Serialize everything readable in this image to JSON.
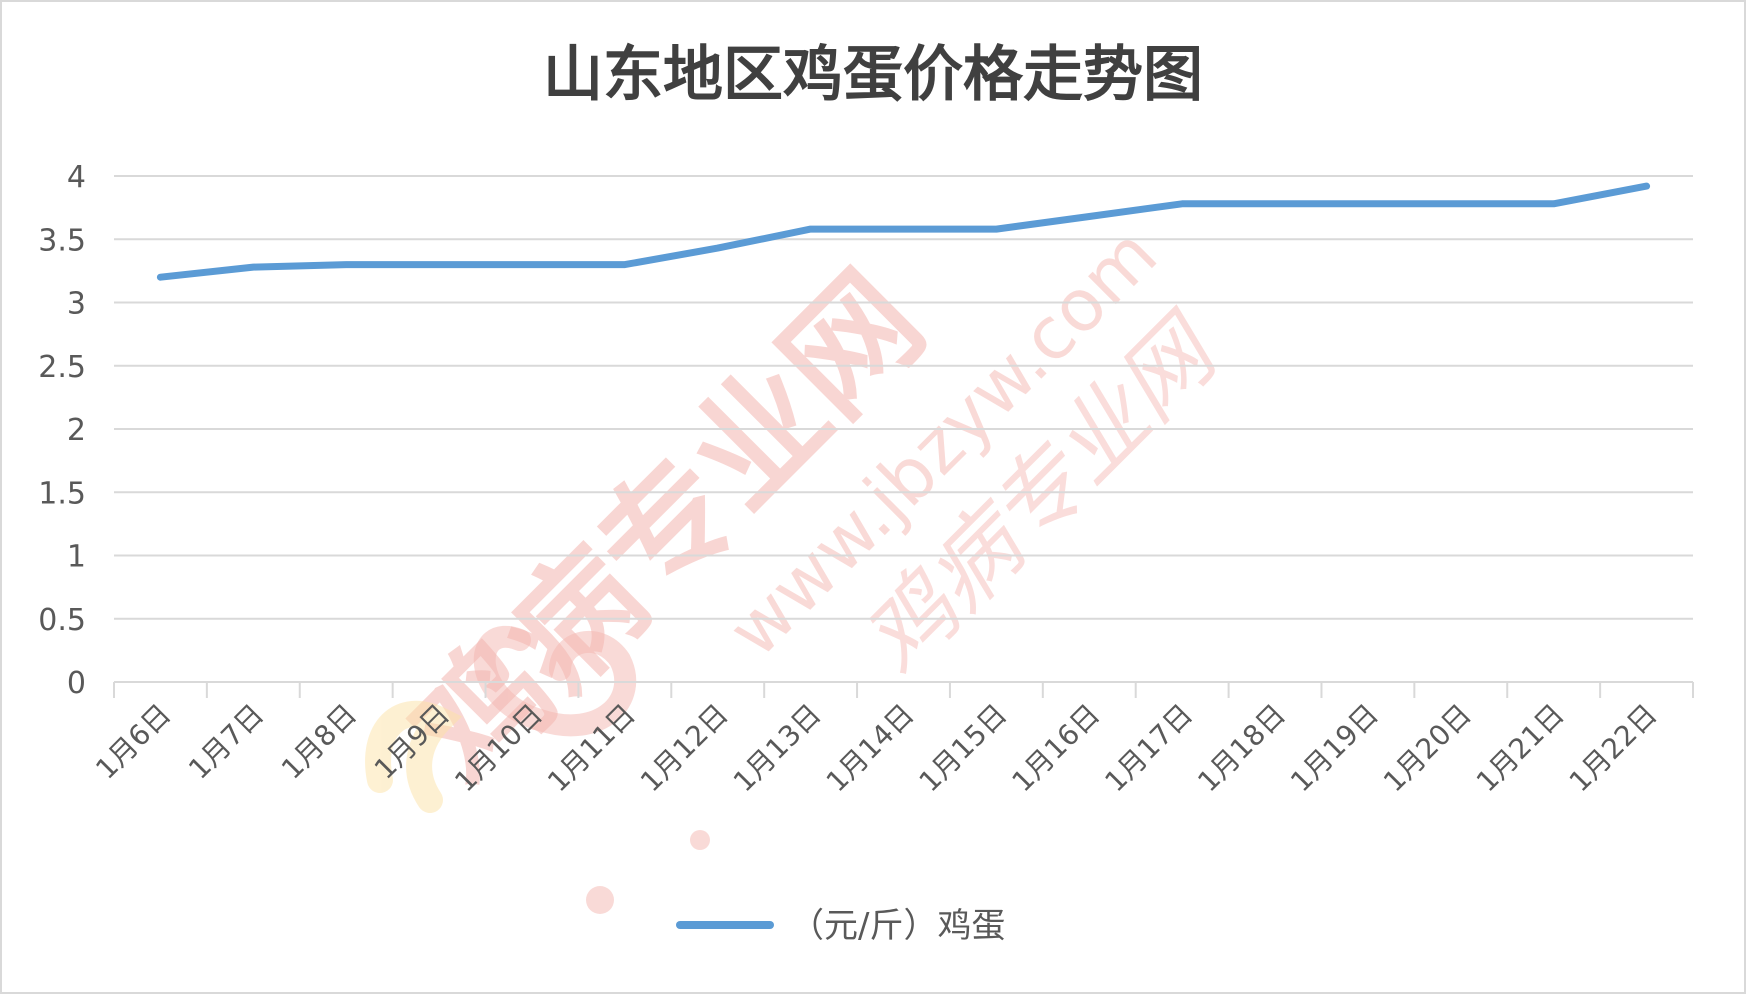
{
  "chart_data": {
    "type": "line",
    "title": "山东地区鸡蛋价格走势图",
    "categories": [
      "1月6日",
      "1月7日",
      "1月8日",
      "1月9日",
      "1月10日",
      "1月11日",
      "1月12日",
      "1月13日",
      "1月14日",
      "1月15日",
      "1月16日",
      "1月17日",
      "1月18日",
      "1月19日",
      "1月20日",
      "1月21日",
      "1月22日"
    ],
    "series": [
      {
        "name": "（元/斤）鸡蛋",
        "color": "#5b9bd5",
        "values": [
          3.2,
          3.28,
          3.3,
          3.3,
          3.3,
          3.3,
          3.43,
          3.58,
          3.58,
          3.58,
          3.68,
          3.78,
          3.78,
          3.78,
          3.78,
          3.78,
          3.92
        ]
      }
    ],
    "ylim": [
      0,
      4
    ],
    "yticks": [
      "0",
      "0.5",
      "1",
      "1.5",
      "2",
      "2.5",
      "3",
      "3.5",
      "4"
    ],
    "xlabel": "",
    "ylabel": "",
    "grid": true,
    "legend_position": "bottom"
  },
  "watermark": {
    "main_text": "鸡病专业网",
    "url_text": "www.jbzyw.com",
    "sign_text": "鸡病专业网"
  },
  "colors": {
    "series": "#5b9bd5",
    "grid": "#d9d9d9",
    "text": "#595959",
    "title": "#404040",
    "watermark": "#f4b6b0"
  }
}
